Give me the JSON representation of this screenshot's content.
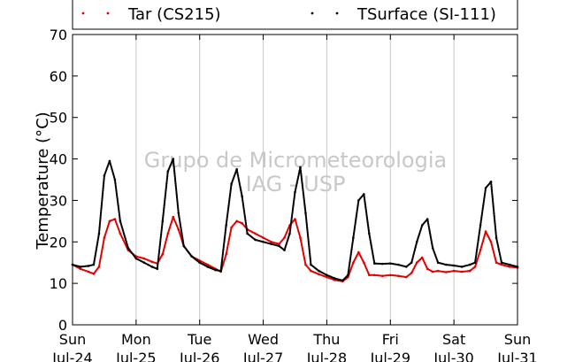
{
  "chart_data": {
    "type": "scatter",
    "title": "",
    "ylabel": "Temperature (°C)",
    "xlabel": "",
    "ylim": [
      0,
      70
    ],
    "yticks": [
      0,
      10,
      20,
      30,
      40,
      50,
      60,
      70
    ],
    "xlim": [
      "2016-07-24T00:00",
      "2016-07-31T00:00"
    ],
    "x_tick_labels": [
      {
        "day": "Sun",
        "date": "Jul-24"
      },
      {
        "day": "Mon",
        "date": "Jul-25"
      },
      {
        "day": "Tue",
        "date": "Jul-26"
      },
      {
        "day": "Wed",
        "date": "Jul-27"
      },
      {
        "day": "Thu",
        "date": "Jul-28"
      },
      {
        "day": "Fri",
        "date": "Jul-29"
      },
      {
        "day": "Sat",
        "date": "Jul-30"
      },
      {
        "day": "Sun",
        "date": "Jul-31"
      }
    ],
    "grid": "vertical",
    "legend_position": "top",
    "watermark": [
      "Grupo de Micrometeorologia",
      "IAG - USP"
    ],
    "series": [
      {
        "name": "Tar (CS215)",
        "color": "#e00000",
        "x": [
          "2016-07-24T00:00",
          "2016-07-24T03:00",
          "2016-07-24T06:00",
          "2016-07-24T08:00",
          "2016-07-24T10:00",
          "2016-07-24T12:00",
          "2016-07-24T14:00",
          "2016-07-24T16:00",
          "2016-07-24T18:00",
          "2016-07-24T21:00",
          "2016-07-25T00:00",
          "2016-07-25T03:00",
          "2016-07-25T06:00",
          "2016-07-25T08:00",
          "2016-07-25T10:00",
          "2016-07-25T12:00",
          "2016-07-25T14:00",
          "2016-07-25T16:00",
          "2016-07-25T18:00",
          "2016-07-25T21:00",
          "2016-07-26T00:00",
          "2016-07-26T03:00",
          "2016-07-26T06:00",
          "2016-07-26T08:00",
          "2016-07-26T10:00",
          "2016-07-26T12:00",
          "2016-07-26T14:00",
          "2016-07-26T16:00",
          "2016-07-26T18:00",
          "2016-07-26T21:00",
          "2016-07-27T00:00",
          "2016-07-27T03:00",
          "2016-07-27T06:00",
          "2016-07-27T08:00",
          "2016-07-27T10:00",
          "2016-07-27T12:00",
          "2016-07-27T14:00",
          "2016-07-27T16:00",
          "2016-07-27T18:00",
          "2016-07-27T21:00",
          "2016-07-28T00:00",
          "2016-07-28T03:00",
          "2016-07-28T06:00",
          "2016-07-28T08:00",
          "2016-07-28T10:00",
          "2016-07-28T12:00",
          "2016-07-28T14:00",
          "2016-07-28T16:00",
          "2016-07-28T18:00",
          "2016-07-28T21:00",
          "2016-07-29T00:00",
          "2016-07-29T03:00",
          "2016-07-29T06:00",
          "2016-07-29T08:00",
          "2016-07-29T10:00",
          "2016-07-29T12:00",
          "2016-07-29T14:00",
          "2016-07-29T16:00",
          "2016-07-29T18:00",
          "2016-07-29T21:00",
          "2016-07-30T00:00",
          "2016-07-30T03:00",
          "2016-07-30T06:00",
          "2016-07-30T08:00",
          "2016-07-30T10:00",
          "2016-07-30T12:00",
          "2016-07-30T14:00",
          "2016-07-30T16:00",
          "2016-07-30T18:00",
          "2016-07-30T21:00",
          "2016-07-31T00:00"
        ],
        "values": [
          14.5,
          13.5,
          12.8,
          12.3,
          14.0,
          21.0,
          25.0,
          25.5,
          22.0,
          18.0,
          16.5,
          16.0,
          15.2,
          14.8,
          17.0,
          22.0,
          26.0,
          23.0,
          19.0,
          16.5,
          15.5,
          14.5,
          13.5,
          12.8,
          17.0,
          23.5,
          25.0,
          24.5,
          23.0,
          22.0,
          21.0,
          20.0,
          19.5,
          21.0,
          24.0,
          25.5,
          21.0,
          14.5,
          13.0,
          12.2,
          11.5,
          10.8,
          10.5,
          11.5,
          15.0,
          17.5,
          15.0,
          12.0,
          12.0,
          11.8,
          12.0,
          11.8,
          11.5,
          12.5,
          15.0,
          16.2,
          13.5,
          12.8,
          13.0,
          12.7,
          13.0,
          12.8,
          13.0,
          14.0,
          18.0,
          22.5,
          20.0,
          15.0,
          14.5,
          14.0,
          13.8
        ]
      },
      {
        "name": "TSurface (SI-111)",
        "color": "#000000",
        "x": [
          "2016-07-24T00:00",
          "2016-07-24T03:00",
          "2016-07-24T06:00",
          "2016-07-24T08:00",
          "2016-07-24T10:00",
          "2016-07-24T12:00",
          "2016-07-24T14:00",
          "2016-07-24T16:00",
          "2016-07-24T18:00",
          "2016-07-24T21:00",
          "2016-07-25T00:00",
          "2016-07-25T03:00",
          "2016-07-25T06:00",
          "2016-07-25T08:00",
          "2016-07-25T10:00",
          "2016-07-25T12:00",
          "2016-07-25T14:00",
          "2016-07-25T16:00",
          "2016-07-25T18:00",
          "2016-07-25T21:00",
          "2016-07-26T00:00",
          "2016-07-26T03:00",
          "2016-07-26T06:00",
          "2016-07-26T08:00",
          "2016-07-26T10:00",
          "2016-07-26T12:00",
          "2016-07-26T14:00",
          "2016-07-26T16:00",
          "2016-07-26T18:00",
          "2016-07-26T21:00",
          "2016-07-27T00:00",
          "2016-07-27T03:00",
          "2016-07-27T06:00",
          "2016-07-27T08:00",
          "2016-07-27T10:00",
          "2016-07-27T12:00",
          "2016-07-27T14:00",
          "2016-07-27T16:00",
          "2016-07-27T18:00",
          "2016-07-27T21:00",
          "2016-07-28T00:00",
          "2016-07-28T03:00",
          "2016-07-28T06:00",
          "2016-07-28T08:00",
          "2016-07-28T10:00",
          "2016-07-28T12:00",
          "2016-07-28T14:00",
          "2016-07-28T16:00",
          "2016-07-28T18:00",
          "2016-07-28T21:00",
          "2016-07-29T00:00",
          "2016-07-29T03:00",
          "2016-07-29T06:00",
          "2016-07-29T08:00",
          "2016-07-29T10:00",
          "2016-07-29T12:00",
          "2016-07-29T14:00",
          "2016-07-29T16:00",
          "2016-07-29T18:00",
          "2016-07-29T21:00",
          "2016-07-30T00:00",
          "2016-07-30T03:00",
          "2016-07-30T06:00",
          "2016-07-30T08:00",
          "2016-07-30T10:00",
          "2016-07-30T12:00",
          "2016-07-30T14:00",
          "2016-07-30T16:00",
          "2016-07-30T18:00",
          "2016-07-30T21:00",
          "2016-07-31T00:00"
        ],
        "values": [
          14.5,
          14.0,
          14.2,
          14.5,
          22.0,
          36.0,
          39.5,
          35.0,
          25.0,
          18.5,
          16.0,
          15.0,
          14.0,
          13.5,
          25.0,
          37.0,
          40.0,
          27.0,
          19.0,
          16.5,
          15.0,
          14.0,
          13.2,
          13.0,
          24.0,
          34.0,
          37.5,
          31.0,
          22.0,
          20.5,
          20.0,
          19.5,
          19.0,
          18.0,
          22.0,
          32.0,
          38.0,
          27.0,
          14.5,
          13.0,
          12.0,
          11.2,
          10.7,
          12.0,
          21.0,
          30.0,
          31.5,
          22.0,
          14.8,
          14.7,
          14.8,
          14.5,
          14.0,
          15.0,
          20.0,
          24.0,
          25.5,
          18.5,
          15.0,
          14.5,
          14.3,
          14.0,
          14.5,
          15.0,
          24.0,
          33.0,
          34.5,
          21.0,
          15.0,
          14.5,
          14.0
        ]
      }
    ]
  }
}
